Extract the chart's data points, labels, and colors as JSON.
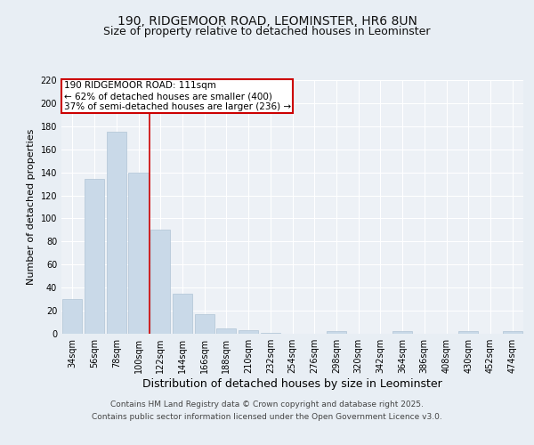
{
  "title_line1": "190, RIDGEMOOR ROAD, LEOMINSTER, HR6 8UN",
  "title_line2": "Size of property relative to detached houses in Leominster",
  "xlabel": "Distribution of detached houses by size in Leominster",
  "ylabel": "Number of detached properties",
  "categories": [
    "34sqm",
    "56sqm",
    "78sqm",
    "100sqm",
    "122sqm",
    "144sqm",
    "166sqm",
    "188sqm",
    "210sqm",
    "232sqm",
    "254sqm",
    "276sqm",
    "298sqm",
    "320sqm",
    "342sqm",
    "364sqm",
    "386sqm",
    "408sqm",
    "430sqm",
    "452sqm",
    "474sqm"
  ],
  "values": [
    30,
    134,
    175,
    140,
    90,
    35,
    17,
    5,
    3,
    1,
    0,
    0,
    2,
    0,
    0,
    2,
    0,
    0,
    2,
    0,
    2
  ],
  "bar_color": "#c9d9e8",
  "bar_edge_color": "#afc4d5",
  "vline_x": 3.5,
  "vline_color": "#cc0000",
  "annotation_text": "190 RIDGEMOOR ROAD: 111sqm\n← 62% of detached houses are smaller (400)\n37% of semi-detached houses are larger (236) →",
  "annotation_box_color": "#ffffff",
  "annotation_box_edge_color": "#cc0000",
  "ylim": [
    0,
    220
  ],
  "yticks": [
    0,
    20,
    40,
    60,
    80,
    100,
    120,
    140,
    160,
    180,
    200,
    220
  ],
  "bg_color": "#e8eef4",
  "plot_bg_color": "#edf1f6",
  "footer_line1": "Contains HM Land Registry data © Crown copyright and database right 2025.",
  "footer_line2": "Contains public sector information licensed under the Open Government Licence v3.0.",
  "title_fontsize": 10,
  "subtitle_fontsize": 9,
  "xlabel_fontsize": 9,
  "ylabel_fontsize": 8,
  "tick_fontsize": 7,
  "footer_fontsize": 6.5,
  "annotation_fontsize": 7.5
}
